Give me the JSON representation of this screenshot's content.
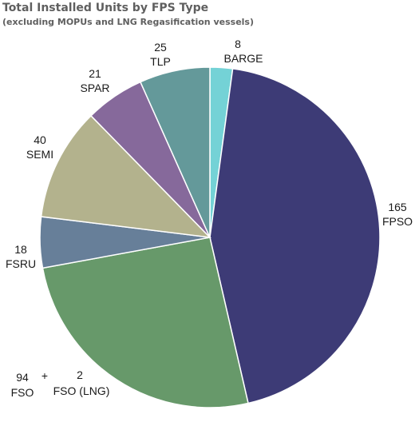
{
  "chart_data": {
    "type": "pie",
    "title": "Total Installed Units by FPS Type",
    "subtitle": "(excluding MOPUs and LNG Regasification vessels)",
    "slices": [
      {
        "name": "BARGE",
        "value": 8,
        "color": "#74d2d6",
        "label": [
          "8",
          "BARGE"
        ]
      },
      {
        "name": "FPSO",
        "value": 165,
        "color": "#3d3b76",
        "label": [
          "165",
          "FPSO"
        ]
      },
      {
        "name": "FSO + FSO (LNG)",
        "value": 96,
        "color": "#67996a",
        "label": [
          "94 + 2",
          "FSO FSO (LNG)"
        ]
      },
      {
        "name": "FSRU",
        "value": 18,
        "color": "#677f99",
        "label": [
          "18",
          "FSRU"
        ]
      },
      {
        "name": "SEMI",
        "value": 40,
        "color": "#b3b28d",
        "label": [
          "40",
          "SEMI"
        ]
      },
      {
        "name": "SPAR",
        "value": 21,
        "color": "#86699b",
        "label": [
          "21",
          "SPAR"
        ]
      },
      {
        "name": "TLP",
        "value": 25,
        "color": "#64999a",
        "label": [
          "25",
          "TLP"
        ]
      }
    ],
    "fso_parts": {
      "fso_value": "94",
      "plus": "+",
      "lng_value": "2",
      "fso_name": "FSO",
      "lng_name": "FSO (LNG)"
    }
  }
}
